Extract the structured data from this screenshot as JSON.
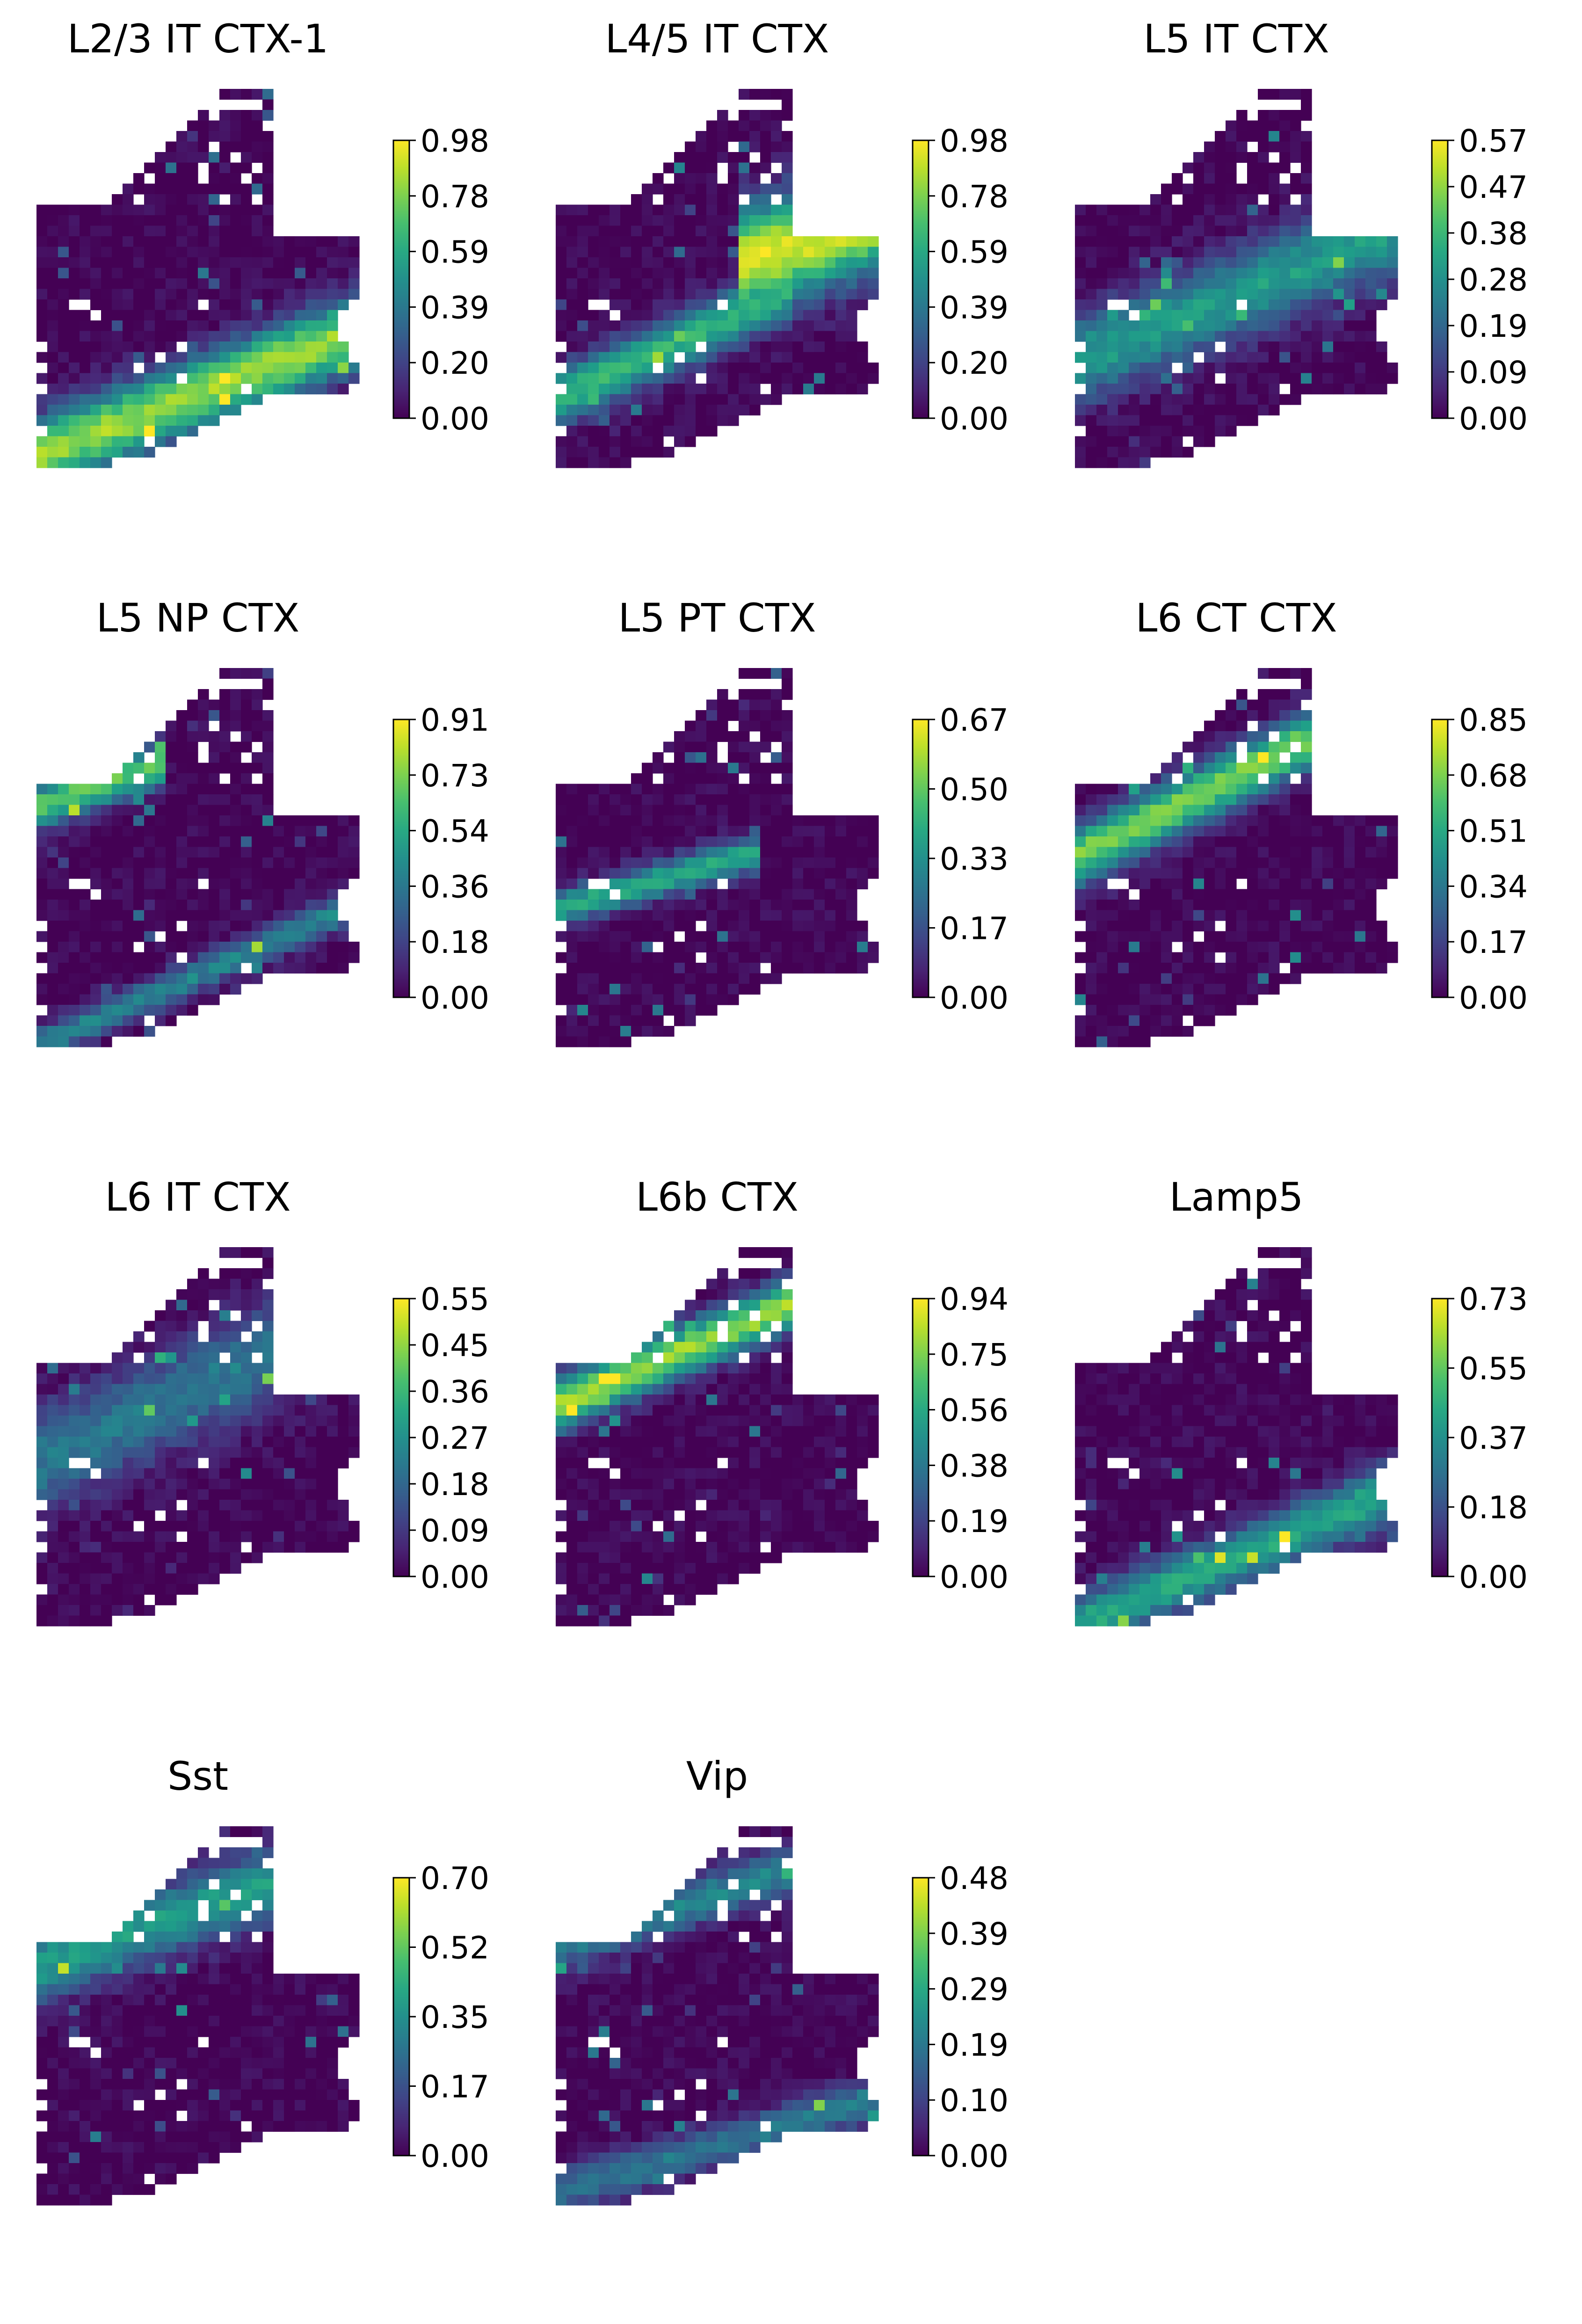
{
  "figure": {
    "type": "spatial-heatmap-grid",
    "colormap": "viridis",
    "background": "#ffffff"
  },
  "chart_data": [
    {
      "type": "heatmap",
      "title": "L2/3 IT CTX-1",
      "vmax": 0.98,
      "colorbar_ticks": [
        "0.00",
        "0.20",
        "0.39",
        "0.59",
        "0.78",
        "0.98"
      ],
      "bands": [
        {
          "y0": 0.95,
          "y1": 0.62,
          "width": 0.1,
          "peak": 0.85,
          "along": [
            0.0,
            1.0
          ]
        }
      ]
    },
    {
      "type": "heatmap",
      "title": "L4/5 IT CTX",
      "vmax": 0.98,
      "colorbar_ticks": [
        "0.00",
        "0.20",
        "0.39",
        "0.59",
        "0.78",
        "0.98"
      ],
      "bands": [
        {
          "y0": 0.8,
          "y1": 0.4,
          "width": 0.08,
          "peak": 0.65,
          "along": [
            0.0,
            0.65
          ]
        },
        {
          "y0": 0.6,
          "y1": 0.32,
          "width": 0.14,
          "peak": 0.95,
          "along": [
            0.6,
            1.0
          ]
        }
      ]
    },
    {
      "type": "heatmap",
      "title": "L5 IT CTX",
      "vmax": 0.57,
      "colorbar_ticks": [
        "0.00",
        "0.09",
        "0.19",
        "0.28",
        "0.38",
        "0.47",
        "0.57"
      ],
      "bands": [
        {
          "y0": 0.7,
          "y1": 0.35,
          "width": 0.12,
          "peak": 0.55,
          "along": [
            0.0,
            1.0
          ]
        }
      ]
    },
    {
      "type": "heatmap",
      "title": "L5 NP CTX",
      "vmax": 0.91,
      "colorbar_ticks": [
        "0.00",
        "0.18",
        "0.36",
        "0.54",
        "0.73",
        "0.91"
      ],
      "bands": [
        {
          "y0": 0.98,
          "y1": 0.6,
          "width": 0.05,
          "peak": 0.45,
          "along": [
            0.0,
            1.0
          ]
        },
        {
          "y0": 0.35,
          "y1": 0.05,
          "width": 0.06,
          "peak": 0.75,
          "along": [
            0.0,
            0.35
          ]
        }
      ]
    },
    {
      "type": "heatmap",
      "title": "L5 PT CTX",
      "vmax": 0.67,
      "colorbar_ticks": [
        "0.00",
        "0.17",
        "0.33",
        "0.50",
        "0.67"
      ],
      "bands": [
        {
          "y0": 0.62,
          "y1": 0.38,
          "width": 0.05,
          "peak": 0.6,
          "along": [
            0.0,
            0.55
          ]
        }
      ]
    },
    {
      "type": "heatmap",
      "title": "L6 CT CTX",
      "vmax": 0.85,
      "colorbar_ticks": [
        "0.00",
        "0.17",
        "0.34",
        "0.51",
        "0.68",
        "0.85"
      ],
      "bands": [
        {
          "y0": 0.48,
          "y1": 0.05,
          "width": 0.08,
          "peak": 0.8,
          "along": [
            0.0,
            1.0
          ]
        }
      ]
    },
    {
      "type": "heatmap",
      "title": "L6 IT CTX",
      "vmax": 0.55,
      "colorbar_ticks": [
        "0.00",
        "0.09",
        "0.18",
        "0.27",
        "0.36",
        "0.45",
        "0.55"
      ],
      "bands": [
        {
          "y0": 0.55,
          "y1": 0.15,
          "width": 0.14,
          "peak": 0.4,
          "along": [
            0.0,
            1.0
          ]
        }
      ]
    },
    {
      "type": "heatmap",
      "title": "L6b CTX",
      "vmax": 0.94,
      "colorbar_ticks": [
        "0.00",
        "0.19",
        "0.38",
        "0.56",
        "0.75",
        "0.94"
      ],
      "bands": [
        {
          "y0": 0.4,
          "y1": 0.03,
          "width": 0.07,
          "peak": 0.85,
          "along": [
            0.0,
            1.0
          ]
        }
      ]
    },
    {
      "type": "heatmap",
      "title": "Lamp5",
      "vmax": 0.73,
      "colorbar_ticks": [
        "0.00",
        "0.18",
        "0.37",
        "0.55",
        "0.73"
      ],
      "bands": [
        {
          "y0": 0.98,
          "y1": 0.62,
          "width": 0.08,
          "peak": 0.6,
          "along": [
            0.0,
            1.0
          ]
        }
      ]
    },
    {
      "type": "heatmap",
      "title": "Sst",
      "vmax": 0.7,
      "colorbar_ticks": [
        "0.00",
        "0.17",
        "0.35",
        "0.52",
        "0.70"
      ],
      "bands": [
        {
          "y0": 0.35,
          "y1": 0.05,
          "width": 0.1,
          "peak": 0.55,
          "along": [
            0.0,
            1.0
          ]
        }
      ]
    },
    {
      "type": "heatmap",
      "title": "Vip",
      "vmax": 0.48,
      "colorbar_ticks": [
        "0.00",
        "0.10",
        "0.19",
        "0.29",
        "0.39",
        "0.48"
      ],
      "bands": [
        {
          "y0": 0.3,
          "y1": 0.02,
          "width": 0.07,
          "peak": 0.45,
          "along": [
            0.0,
            1.0
          ]
        },
        {
          "y0": 0.95,
          "y1": 0.7,
          "width": 0.06,
          "peak": 0.4,
          "along": [
            0.0,
            1.0
          ]
        }
      ]
    }
  ]
}
